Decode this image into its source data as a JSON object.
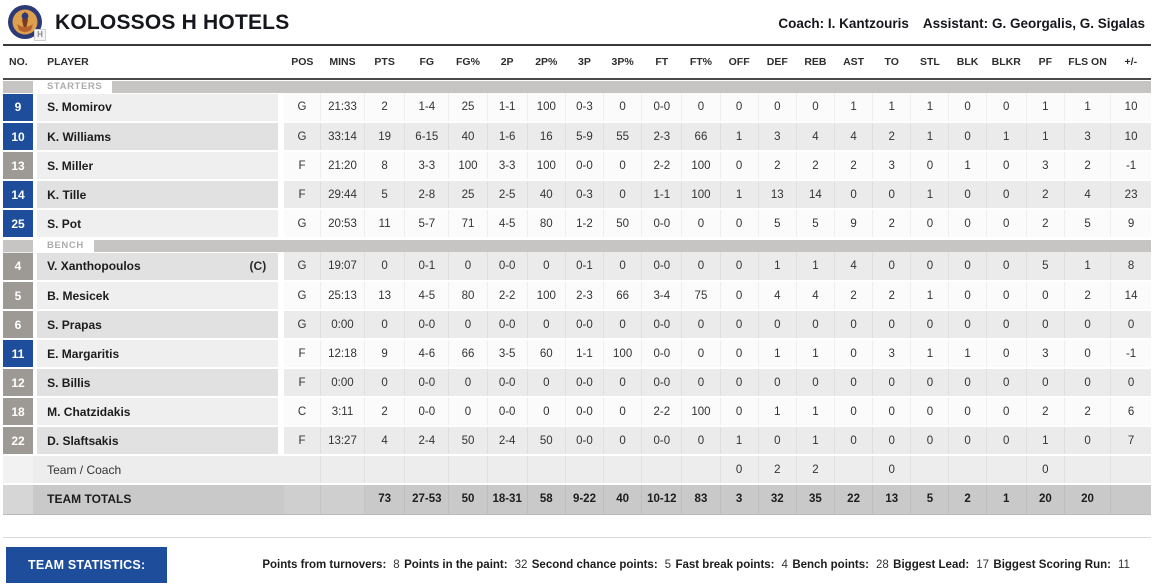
{
  "colors": {
    "accent_blue": "#1d4d9b",
    "badge_blue": "#1d4d9b",
    "badge_gray": "#9d9a95",
    "totals_bg": "#c9c9c9",
    "logo_outer": "#2c3a77",
    "logo_inner": "#dda04c"
  },
  "header": {
    "team_name": "KOLOSSOS H HOTELS",
    "coach_label": "Coach:",
    "coach_name": "I. Kantzouris",
    "assistant_label": "Assistant:",
    "assistant_names": "G. Georgalis, G. Sigalas",
    "logo_tag": "H"
  },
  "table": {
    "columns": [
      "NO.",
      "PLAYER",
      "POS",
      "MINS",
      "PTS",
      "FG",
      "FG%",
      "2P",
      "2P%",
      "3P",
      "3P%",
      "FT",
      "FT%",
      "OFF",
      "DEF",
      "REB",
      "AST",
      "TO",
      "STL",
      "BLK",
      "BLKR",
      "PF",
      "FLS ON",
      "+/-"
    ],
    "stat_keys": [
      "pts",
      "fg",
      "fgpct",
      "2p",
      "2ppct",
      "3p",
      "3ppct",
      "ft",
      "ftpct",
      "off",
      "def",
      "reb",
      "ast",
      "to",
      "stl",
      "blk",
      "blkr",
      "pf",
      "flson",
      "plusminus"
    ],
    "sections": [
      {
        "label": "STARTERS",
        "rows": [
          {
            "no": "9",
            "name": "S. Momirov",
            "captain": "",
            "badge": "blue",
            "pos": "G",
            "mins": "21:33",
            "stats": [
              "2",
              "1-4",
              "25",
              "1-1",
              "100",
              "0-3",
              "0",
              "0-0",
              "0",
              "0",
              "0",
              "0",
              "1",
              "1",
              "1",
              "0",
              "0",
              "1",
              "1",
              "10"
            ]
          },
          {
            "no": "10",
            "name": "K. Williams",
            "captain": "",
            "badge": "blue",
            "pos": "G",
            "mins": "33:14",
            "stats": [
              "19",
              "6-15",
              "40",
              "1-6",
              "16",
              "5-9",
              "55",
              "2-3",
              "66",
              "1",
              "3",
              "4",
              "4",
              "2",
              "1",
              "0",
              "1",
              "1",
              "3",
              "10"
            ]
          },
          {
            "no": "13",
            "name": "S. Miller",
            "captain": "",
            "badge": "gray",
            "pos": "F",
            "mins": "21:20",
            "stats": [
              "8",
              "3-3",
              "100",
              "3-3",
              "100",
              "0-0",
              "0",
              "2-2",
              "100",
              "0",
              "2",
              "2",
              "2",
              "3",
              "0",
              "1",
              "0",
              "3",
              "2",
              "-1"
            ]
          },
          {
            "no": "14",
            "name": "K. Tille",
            "captain": "",
            "badge": "blue",
            "pos": "F",
            "mins": "29:44",
            "stats": [
              "5",
              "2-8",
              "25",
              "2-5",
              "40",
              "0-3",
              "0",
              "1-1",
              "100",
              "1",
              "13",
              "14",
              "0",
              "0",
              "1",
              "0",
              "0",
              "2",
              "4",
              "23"
            ]
          },
          {
            "no": "25",
            "name": "S. Pot",
            "captain": "",
            "badge": "blue",
            "pos": "G",
            "mins": "20:53",
            "stats": [
              "11",
              "5-7",
              "71",
              "4-5",
              "80",
              "1-2",
              "50",
              "0-0",
              "0",
              "0",
              "5",
              "5",
              "9",
              "2",
              "0",
              "0",
              "0",
              "2",
              "5",
              "9"
            ]
          }
        ]
      },
      {
        "label": "BENCH",
        "rows": [
          {
            "no": "4",
            "name": "V. Xanthopoulos",
            "captain": "(C)",
            "badge": "gray",
            "pos": "G",
            "mins": "19:07",
            "stats": [
              "0",
              "0-1",
              "0",
              "0-0",
              "0",
              "0-1",
              "0",
              "0-0",
              "0",
              "0",
              "1",
              "1",
              "4",
              "0",
              "0",
              "0",
              "0",
              "5",
              "1",
              "8"
            ]
          },
          {
            "no": "5",
            "name": "B. Mesicek",
            "captain": "",
            "badge": "gray",
            "pos": "G",
            "mins": "25:13",
            "stats": [
              "13",
              "4-5",
              "80",
              "2-2",
              "100",
              "2-3",
              "66",
              "3-4",
              "75",
              "0",
              "4",
              "4",
              "2",
              "2",
              "1",
              "0",
              "0",
              "0",
              "2",
              "14"
            ]
          },
          {
            "no": "6",
            "name": "S. Prapas",
            "captain": "",
            "badge": "gray",
            "pos": "G",
            "mins": "0:00",
            "stats": [
              "0",
              "0-0",
              "0",
              "0-0",
              "0",
              "0-0",
              "0",
              "0-0",
              "0",
              "0",
              "0",
              "0",
              "0",
              "0",
              "0",
              "0",
              "0",
              "0",
              "0",
              "0"
            ]
          },
          {
            "no": "11",
            "name": "E. Margaritis",
            "captain": "",
            "badge": "blue",
            "pos": "F",
            "mins": "12:18",
            "stats": [
              "9",
              "4-6",
              "66",
              "3-5",
              "60",
              "1-1",
              "100",
              "0-0",
              "0",
              "0",
              "1",
              "1",
              "0",
              "3",
              "1",
              "1",
              "0",
              "3",
              "0",
              "-1"
            ]
          },
          {
            "no": "12",
            "name": "S. Billis",
            "captain": "",
            "badge": "gray",
            "pos": "F",
            "mins": "0:00",
            "stats": [
              "0",
              "0-0",
              "0",
              "0-0",
              "0",
              "0-0",
              "0",
              "0-0",
              "0",
              "0",
              "0",
              "0",
              "0",
              "0",
              "0",
              "0",
              "0",
              "0",
              "0",
              "0"
            ]
          },
          {
            "no": "18",
            "name": "M. Chatzidakis",
            "captain": "",
            "badge": "gray",
            "pos": "C",
            "mins": "3:11",
            "stats": [
              "2",
              "0-0",
              "0",
              "0-0",
              "0",
              "0-0",
              "0",
              "2-2",
              "100",
              "0",
              "1",
              "1",
              "0",
              "0",
              "0",
              "0",
              "0",
              "2",
              "2",
              "6"
            ]
          },
          {
            "no": "22",
            "name": "D. Slaftsakis",
            "captain": "",
            "badge": "gray",
            "pos": "F",
            "mins": "13:27",
            "stats": [
              "4",
              "2-4",
              "50",
              "2-4",
              "50",
              "0-0",
              "0",
              "0-0",
              "0",
              "1",
              "0",
              "1",
              "0",
              "0",
              "0",
              "0",
              "0",
              "1",
              "0",
              "7"
            ]
          }
        ]
      }
    ],
    "team_coach_row": {
      "name": "Team / Coach",
      "stats": [
        "",
        "",
        "",
        "",
        "",
        "",
        "",
        "",
        "",
        "0",
        "2",
        "2",
        "",
        "0",
        "",
        "",
        "",
        "0",
        "",
        ""
      ]
    },
    "totals_row": {
      "name": "TEAM TOTALS",
      "stats": [
        "73",
        "27-53",
        "50",
        "18-31",
        "58",
        "9-22",
        "40",
        "10-12",
        "83",
        "3",
        "32",
        "35",
        "22",
        "13",
        "5",
        "2",
        "1",
        "20",
        "20",
        ""
      ]
    }
  },
  "footer": {
    "team_statistics_label": "TEAM STATISTICS:",
    "stats": [
      {
        "label": "Points from turnovers:",
        "value": "8"
      },
      {
        "label": "Points in the paint:",
        "value": "32"
      },
      {
        "label": "Second chance points:",
        "value": "5"
      },
      {
        "label": "Fast break points:",
        "value": "4"
      },
      {
        "label": "Bench points:",
        "value": "28"
      },
      {
        "label": "Biggest Lead:",
        "value": "17"
      },
      {
        "label": "Biggest Scoring Run:",
        "value": "11"
      }
    ]
  }
}
